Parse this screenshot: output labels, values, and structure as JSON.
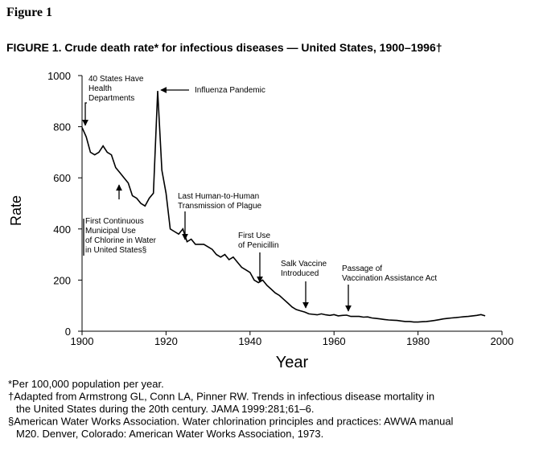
{
  "figure_label": "Figure 1",
  "chart_data": {
    "type": "line",
    "title": "FIGURE 1. Crude death rate* for infectious diseases — United States, 1900–1996†",
    "x_label": "Year",
    "y_label": "Rate",
    "color": "#000000",
    "x": [
      1900,
      1901,
      1902,
      1903,
      1904,
      1905,
      1906,
      1907,
      1908,
      1909,
      1910,
      1911,
      1912,
      1913,
      1914,
      1915,
      1916,
      1917,
      1918,
      1919,
      1920,
      1921,
      1922,
      1923,
      1924,
      1925,
      1926,
      1927,
      1928,
      1929,
      1930,
      1931,
      1932,
      1933,
      1934,
      1935,
      1936,
      1937,
      1938,
      1939,
      1940,
      1941,
      1942,
      1943,
      1944,
      1945,
      1946,
      1947,
      1948,
      1949,
      1950,
      1951,
      1952,
      1953,
      1954,
      1955,
      1956,
      1957,
      1958,
      1959,
      1960,
      1961,
      1962,
      1963,
      1964,
      1965,
      1966,
      1967,
      1968,
      1969,
      1970,
      1971,
      1972,
      1973,
      1974,
      1975,
      1976,
      1977,
      1978,
      1979,
      1980,
      1981,
      1982,
      1983,
      1984,
      1985,
      1986,
      1987,
      1988,
      1989,
      1990,
      1991,
      1992,
      1993,
      1994,
      1995,
      1996
    ],
    "values": [
      797,
      760,
      700,
      690,
      700,
      725,
      700,
      690,
      640,
      620,
      600,
      580,
      530,
      520,
      500,
      490,
      520,
      540,
      940,
      630,
      540,
      400,
      390,
      380,
      400,
      350,
      360,
      340,
      340,
      340,
      330,
      320,
      300,
      290,
      300,
      280,
      290,
      270,
      250,
      240,
      230,
      200,
      190,
      200,
      180,
      165,
      150,
      140,
      125,
      110,
      95,
      85,
      80,
      75,
      68,
      66,
      64,
      68,
      64,
      62,
      65,
      60,
      62,
      63,
      58,
      58,
      58,
      55,
      56,
      52,
      50,
      48,
      46,
      44,
      43,
      42,
      40,
      38,
      38,
      36,
      36,
      37,
      38,
      40,
      42,
      45,
      48,
      50,
      52,
      53,
      55,
      57,
      58,
      60,
      62,
      65,
      60
    ],
    "xlim": [
      1900,
      2000
    ],
    "xticks": [
      1900,
      1920,
      1940,
      1960,
      1980,
      2000
    ],
    "ylim": [
      0,
      1000
    ],
    "yticks": [
      0,
      200,
      400,
      600,
      800,
      1000
    ],
    "annotations": [
      {
        "lines": [
          "40 States Have",
          "Health",
          "Departments"
        ]
      },
      {
        "lines": [
          "Influenza Pandemic"
        ]
      },
      {
        "lines": [
          "Last Human-to-Human",
          "Transmission of Plague"
        ]
      },
      {
        "lines": [
          "First Continuous",
          "Municipal Use",
          "of Chlorine in Water",
          "in United States§"
        ]
      },
      {
        "lines": [
          "First Use",
          "of Penicillin"
        ]
      },
      {
        "lines": [
          "Salk Vaccine",
          "Introduced"
        ]
      },
      {
        "lines": [
          "Passage of",
          "Vaccination Assistance Act"
        ]
      }
    ]
  },
  "footnotes": [
    {
      "lines": [
        "*Per 100,000 population per year."
      ]
    },
    {
      "lines": [
        "†Adapted from Armstrong GL, Conn LA, Pinner RW. Trends in infectious disease mortality in",
        "the United States during the 20th century. JAMA 1999:281;61–6."
      ]
    },
    {
      "lines": [
        "§American Water Works Association. Water chlorination principles and practices: AWWA manual",
        "M20. Denver, Colorado: American Water Works Association, 1973."
      ]
    }
  ]
}
